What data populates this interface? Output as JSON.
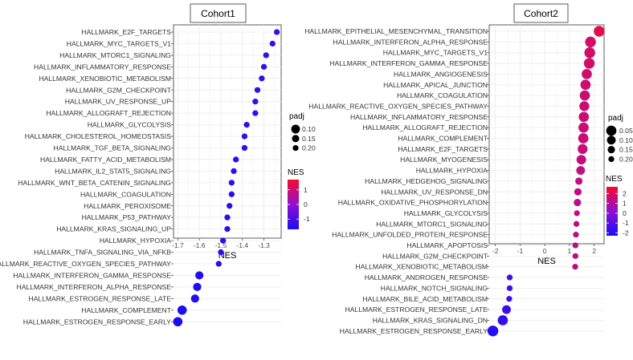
{
  "chart_data": [
    {
      "type": "scatter",
      "title": "Cohort1",
      "xlabel": "NES",
      "xlim": [
        -1.72,
        -1.22
      ],
      "xticks": [
        -1.7,
        -1.6,
        -1.5,
        -1.4,
        -1.3
      ],
      "xtick_labels": [
        "-1.7",
        "-1.6",
        "-1.5",
        "-1.4",
        "-1.3"
      ],
      "grid": true,
      "legend_placement": "right",
      "color_scale": {
        "title": "NES",
        "low": "#1a0df5",
        "mid": "#9010d0",
        "high": "#f50c2a",
        "domain": [
          -1.7,
          1.7
        ],
        "tick_values": [
          1,
          0,
          -1
        ],
        "tick_labels": [
          "1",
          "0",
          "-1"
        ]
      },
      "size_legend": {
        "title": "padj",
        "values": [
          0.1,
          0.15,
          0.2
        ],
        "labels": [
          "0.10",
          "0.15",
          "0.20"
        ]
      },
      "categories": [
        "HALLMARK_E2F_TARGETS",
        "HALLMARK_MYC_TARGETS_V1",
        "HALLMARK_MTORC1_SIGNALING",
        "HALLMARK_INFLAMMATORY_RESPONSE",
        "HALLMARK_XENOBIOTIC_METABOLISM",
        "HALLMARK_G2M_CHECKPOINT",
        "HALLMARK_UV_RESPONSE_UP",
        "HALLMARK_ALLOGRAFT_REJECTION",
        "HALLMARK_GLYCOLYSIS",
        "HALLMARK_CHOLESTEROL_HOMEOSTASIS",
        "HALLMARK_TGF_BETA_SIGNALING",
        "HALLMARK_FATTY_ACID_METABOLISM",
        "HALLMARK_IL2_STAT5_SIGNALING",
        "HALLMARK_WNT_BETA_CATENIN_SIGNALING",
        "HALLMARK_COAGULATION",
        "HALLMARK_PEROXISOME",
        "HALLMARK_P53_PATHWAY",
        "HALLMARK_KRAS_SIGNALING_UP",
        "HALLMARK_HYPOXIA",
        "HALLMARK_TNFA_SIGNALING_VIA_NFKB",
        "HALLMARK_REACTIVE_OXYGEN_SPECIES_PATHWAY",
        "HALLMARK_INTERFERON_GAMMA_RESPONSE",
        "HALLMARK_INTERFERON_ALPHA_RESPONSE",
        "HALLMARK_ESTROGEN_RESPONSE_LATE",
        "HALLMARK_COMPLEMENT",
        "HALLMARK_ESTROGEN_RESPONSE_EARLY"
      ],
      "x": [
        -1.24,
        -1.26,
        -1.29,
        -1.3,
        -1.31,
        -1.33,
        -1.34,
        -1.34,
        -1.38,
        -1.39,
        -1.39,
        -1.43,
        -1.44,
        -1.45,
        -1.45,
        -1.46,
        -1.47,
        -1.47,
        -1.49,
        -1.5,
        -1.51,
        -1.6,
        -1.61,
        -1.62,
        -1.68,
        -1.7
      ],
      "padj": [
        0.2,
        0.2,
        0.2,
        0.2,
        0.2,
        0.2,
        0.2,
        0.2,
        0.2,
        0.2,
        0.2,
        0.2,
        0.2,
        0.2,
        0.2,
        0.2,
        0.2,
        0.2,
        0.2,
        0.2,
        0.2,
        0.12,
        0.12,
        0.12,
        0.08,
        0.08
      ]
    },
    {
      "type": "scatter",
      "title": "Cohort2",
      "xlabel": "NES",
      "xlim": [
        -2.25,
        2.4
      ],
      "xticks": [
        -2,
        -1,
        0,
        1,
        2
      ],
      "xtick_labels": [
        "-2",
        "-1",
        "0",
        "1",
        "2"
      ],
      "grid": true,
      "legend_placement": "right",
      "color_scale": {
        "title": "NES",
        "low": "#1a0df5",
        "mid": "#9010d0",
        "high": "#f50c2a",
        "domain": [
          -2.3,
          2.7
        ],
        "tick_values": [
          2,
          1,
          0,
          -1,
          -2
        ],
        "tick_labels": [
          "2",
          "1",
          "0",
          "-1",
          "-2"
        ]
      },
      "size_legend": {
        "title": "padj",
        "values": [
          0.05,
          0.1,
          0.15,
          0.2
        ],
        "labels": [
          "0.05",
          "0.10",
          "0.15",
          "0.20"
        ]
      },
      "categories": [
        "HALLMARK_EPITHELIAL_MESENCHYMAL_TRANSITION",
        "HALLMARK_INTERFERON_ALPHA_RESPONSE",
        "HALLMARK_MYC_TARGETS_V1",
        "HALLMARK_INTERFERON_GAMMA_RESPONSE",
        "HALLMARK_ANGIOGENESIS",
        "HALLMARK_APICAL_JUNCTION",
        "HALLMARK_COAGULATION",
        "HALLMARK_REACTIVE_OXYGEN_SPECIES_PATHWAY",
        "HALLMARK_INFLAMMATORY_RESPONSE",
        "HALLMARK_ALLOGRAFT_REJECTION",
        "HALLMARK_COMPLEMENT",
        "HALLMARK_E2F_TARGETS",
        "HALLMARK_MYOGENESIS",
        "HALLMARK_HYPOXIA",
        "HALLMARK_HEDGEHOG_SIGNALING",
        "HALLMARK_UV_RESPONSE_DN",
        "HALLMARK_OXIDATIVE_PHOSPHORYLATION",
        "HALLMARK_GLYCOLYSIS",
        "HALLMARK_MTORC1_SIGNALING",
        "HALLMARK_UNFOLDED_PROTEIN_RESPONSE",
        "HALLMARK_APOPTOSIS",
        "HALLMARK_G2M_CHECKPOINT",
        "HALLMARK_XENOBIOTIC_METABOLISM",
        "HALLMARK_ANDROGEN_RESPONSE",
        "HALLMARK_NOTCH_SIGNALING",
        "HALLMARK_BILE_ACID_METABOLISM",
        "HALLMARK_ESTROGEN_RESPONSE_LATE",
        "HALLMARK_KRAS_SIGNALING_DN",
        "HALLMARK_ESTROGEN_RESPONSE_EARLY"
      ],
      "x": [
        2.2,
        1.85,
        1.82,
        1.8,
        1.7,
        1.65,
        1.62,
        1.6,
        1.58,
        1.57,
        1.56,
        1.53,
        1.48,
        1.45,
        1.38,
        1.34,
        1.32,
        1.3,
        1.28,
        1.26,
        1.24,
        1.24,
        1.23,
        -1.42,
        -1.42,
        -1.44,
        -1.55,
        -1.7,
        -2.1
      ],
      "padj": [
        0.03,
        0.03,
        0.03,
        0.03,
        0.05,
        0.05,
        0.05,
        0.06,
        0.05,
        0.05,
        0.05,
        0.06,
        0.07,
        0.1,
        0.15,
        0.15,
        0.15,
        0.2,
        0.2,
        0.2,
        0.2,
        0.2,
        0.2,
        0.2,
        0.2,
        0.2,
        0.1,
        0.05,
        0.03
      ]
    }
  ]
}
